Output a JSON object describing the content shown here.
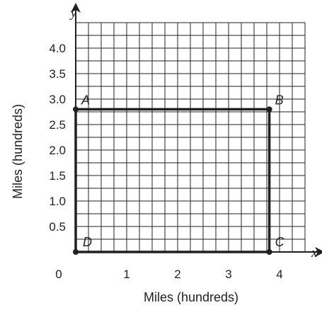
{
  "chart_data": {
    "type": "scatter",
    "xlabel": "Miles (hundreds)",
    "ylabel": "Miles (hundreds)",
    "x_axis_var": "x",
    "y_axis_var": "y",
    "origin_label": "0",
    "xlim": [
      0,
      4.5
    ],
    "ylim": [
      0,
      4.5
    ],
    "grid": true,
    "x_ticks": [
      {
        "value": 1,
        "label": "1"
      },
      {
        "value": 2,
        "label": "2"
      },
      {
        "value": 3,
        "label": "3"
      },
      {
        "value": 4,
        "label": "4"
      }
    ],
    "y_ticks": [
      {
        "value": 0.5,
        "label": "0.5"
      },
      {
        "value": 1.0,
        "label": "1.0"
      },
      {
        "value": 1.5,
        "label": "1.5"
      },
      {
        "value": 2.0,
        "label": "2.0"
      },
      {
        "value": 2.5,
        "label": "2.5"
      },
      {
        "value": 3.0,
        "label": "3.0"
      },
      {
        "value": 3.5,
        "label": "3.5"
      },
      {
        "value": 4.0,
        "label": "4.0"
      }
    ],
    "points": [
      {
        "label": "A",
        "x": 0,
        "y": 2.8
      },
      {
        "label": "B",
        "x": 3.8,
        "y": 2.8
      },
      {
        "label": "C",
        "x": 3.8,
        "y": 0
      },
      {
        "label": "D",
        "x": 0,
        "y": 0
      }
    ],
    "shape": [
      "A",
      "B",
      "C",
      "D"
    ]
  }
}
